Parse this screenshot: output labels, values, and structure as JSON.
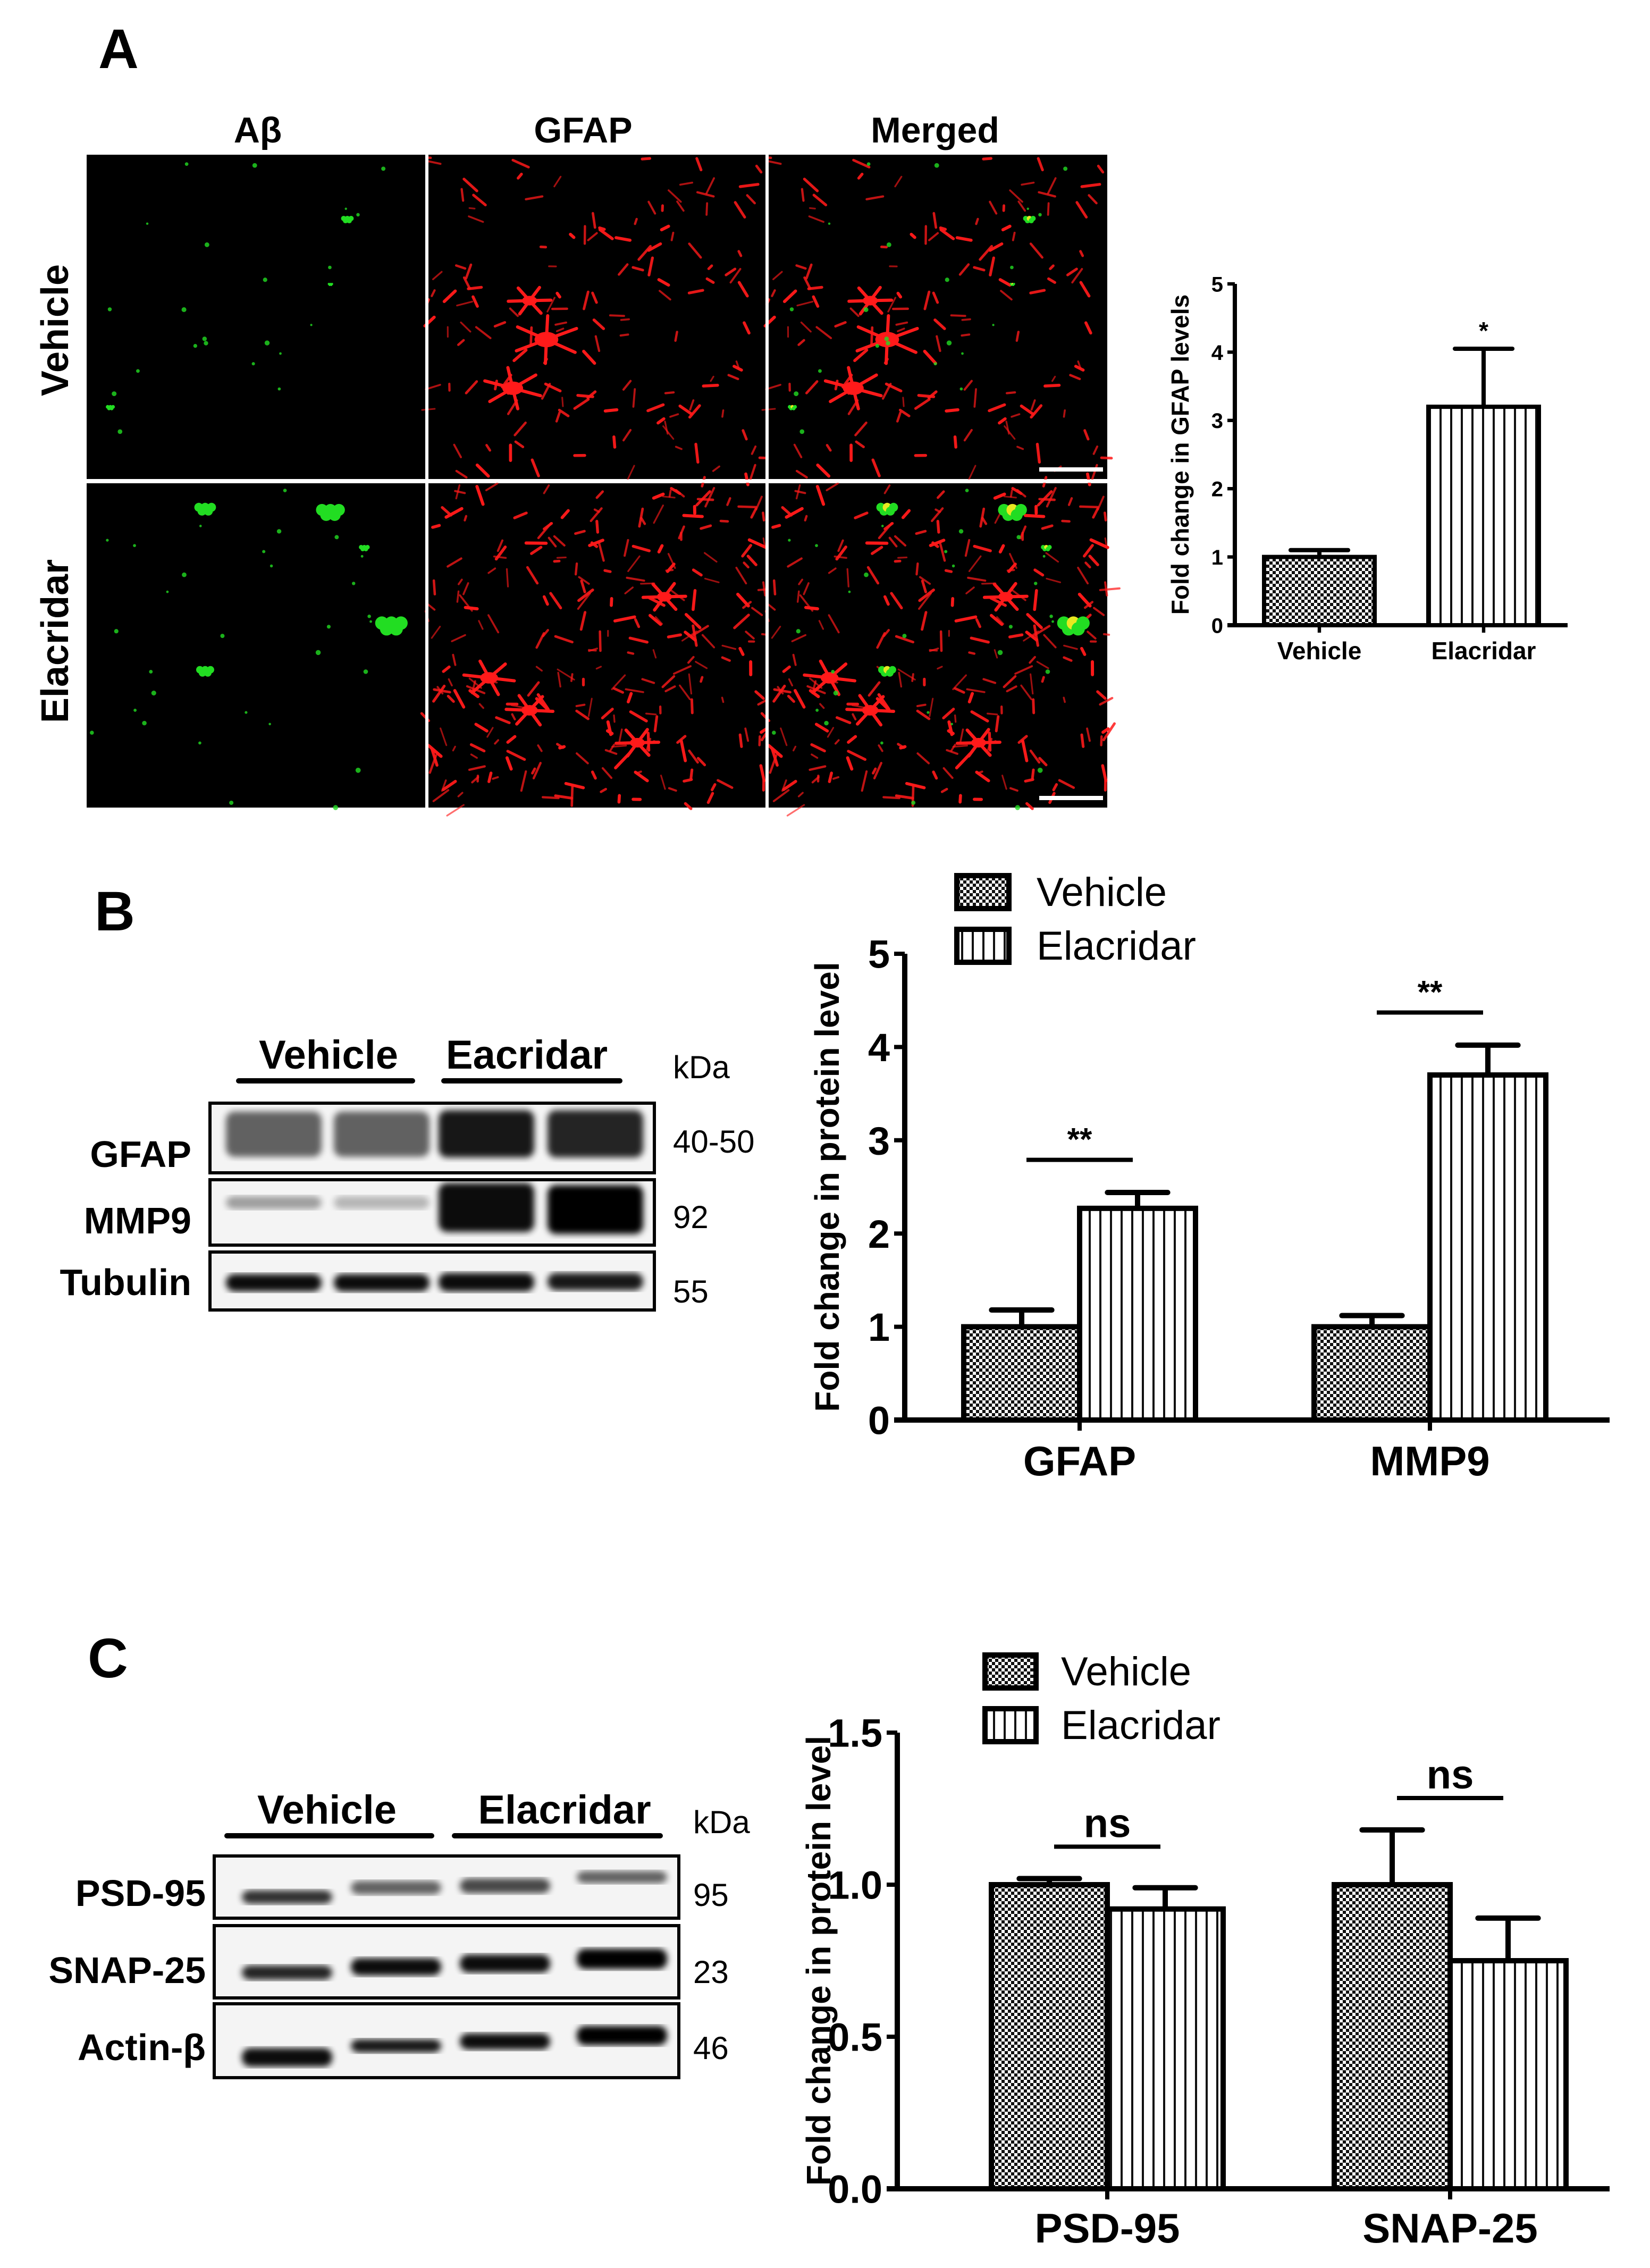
{
  "panels": {
    "a": "A",
    "b": "B",
    "c": "C"
  },
  "panel_a": {
    "column_headers": [
      "Aβ",
      "GFAP",
      "Merged"
    ],
    "row_labels": [
      "Vehicle",
      "Elacridar"
    ],
    "colors": {
      "abeta": "#22dd22",
      "gfap": "#ff1a1a",
      "background": "#000000"
    }
  },
  "panel_b_blot": {
    "groups": [
      "Vehicle",
      "Eacridar"
    ],
    "kda_label": "kDa",
    "rows": [
      {
        "label": "GFAP",
        "kda": "40-50"
      },
      {
        "label": "MMP9",
        "kda": "92"
      },
      {
        "label": "Tubulin",
        "kda": "55"
      }
    ]
  },
  "panel_c_blot": {
    "groups": [
      "Vehicle",
      "Elacridar"
    ],
    "kda_label": "kDa",
    "rows": [
      {
        "label": "PSD-95",
        "kda": "95"
      },
      {
        "label": "SNAP-25",
        "kda": "23"
      },
      {
        "label": "Actin-β",
        "kda": "46"
      }
    ]
  },
  "chart_data": [
    {
      "type": "bar",
      "panel": "A",
      "categories": [
        "Vehicle",
        "Elacridar"
      ],
      "values": [
        1.0,
        3.2
      ],
      "errors": [
        0.1,
        0.85
      ],
      "patterns": [
        "checker",
        "vertical-lines"
      ],
      "title": "",
      "xlabel": "",
      "ylabel": "Fold change in GFAP levels",
      "ylim": [
        0,
        5
      ],
      "yticks": [
        "0",
        "1",
        "2",
        "3",
        "4",
        "5"
      ],
      "grid": false,
      "annotations": [
        {
          "category": "Elacridar",
          "label": "*"
        }
      ]
    },
    {
      "type": "bar",
      "panel": "B",
      "categories": [
        "GFAP",
        "MMP9"
      ],
      "series": [
        {
          "name": "Vehicle",
          "values": [
            1.0,
            1.0
          ],
          "errors": [
            0.18,
            0.12
          ],
          "pattern": "checker"
        },
        {
          "name": "Elacridar",
          "values": [
            2.27,
            3.7
          ],
          "errors": [
            0.17,
            0.32
          ],
          "pattern": "vertical-lines"
        }
      ],
      "title": "",
      "xlabel": "",
      "ylabel": "Fold change in protein level",
      "ylim": [
        0,
        5
      ],
      "yticks": [
        "0",
        "1",
        "2",
        "3",
        "4",
        "5"
      ],
      "grid": false,
      "legend": "top-left",
      "annotations": [
        {
          "category": "GFAP",
          "label": "**"
        },
        {
          "category": "MMP9",
          "label": "**"
        }
      ]
    },
    {
      "type": "bar",
      "panel": "C",
      "categories": [
        "PSD-95",
        "SNAP-25"
      ],
      "series": [
        {
          "name": "Vehicle",
          "values": [
            1.0,
            1.0
          ],
          "errors": [
            0.02,
            0.18
          ],
          "pattern": "checker"
        },
        {
          "name": "Elacridar",
          "values": [
            0.92,
            0.75
          ],
          "errors": [
            0.07,
            0.14
          ],
          "pattern": "vertical-lines"
        }
      ],
      "title": "",
      "xlabel": "",
      "ylabel": "Fold change in protein level",
      "ylim": [
        0,
        1.5
      ],
      "yticks": [
        "0.0",
        "0.5",
        "1.0",
        "1.5"
      ],
      "grid": false,
      "legend": "top-left",
      "annotations": [
        {
          "category": "PSD-95",
          "label": "ns"
        },
        {
          "category": "SNAP-25",
          "label": "ns"
        }
      ]
    }
  ]
}
